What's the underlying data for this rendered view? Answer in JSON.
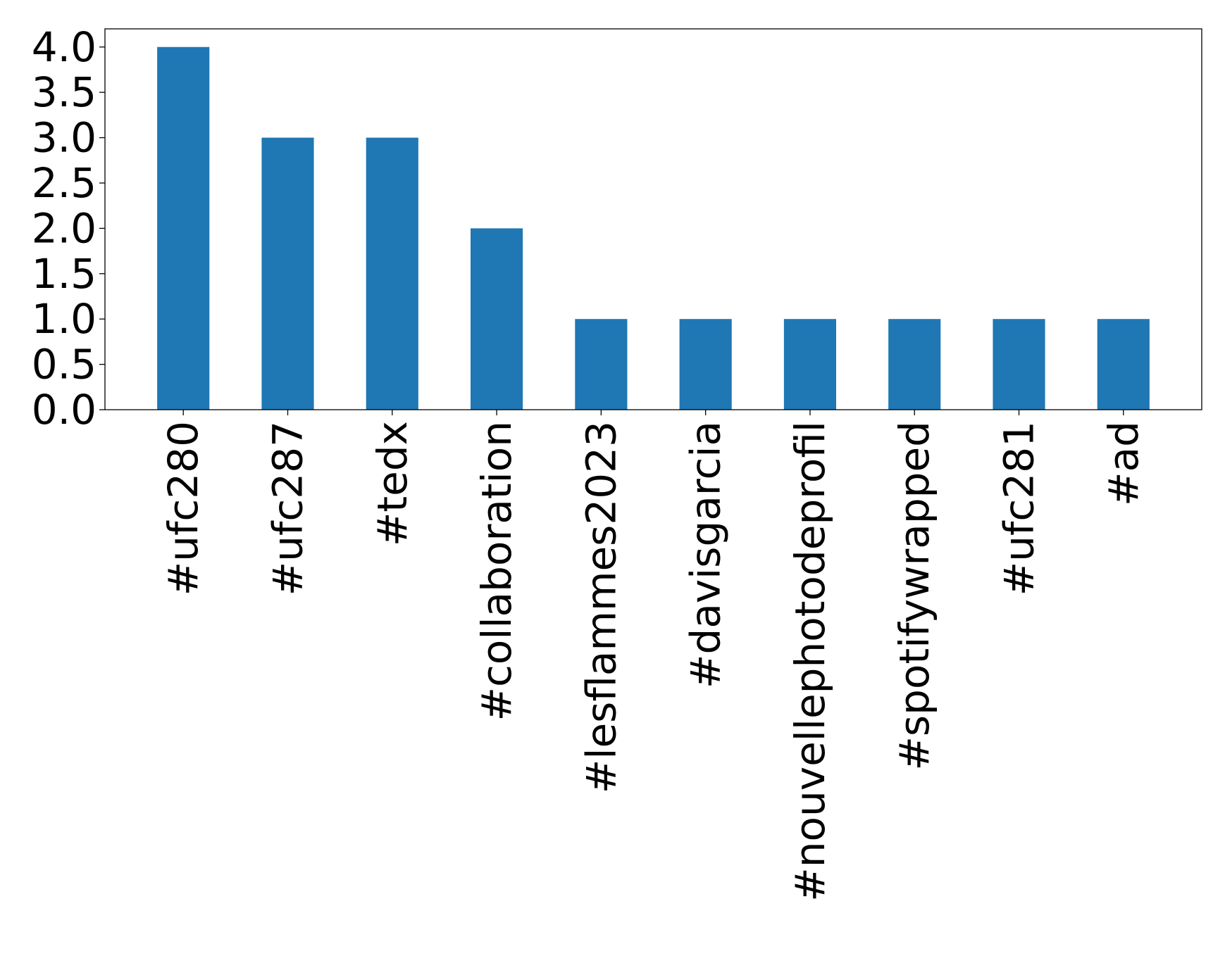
{
  "chart_data": {
    "type": "bar",
    "title": "",
    "xlabel": "",
    "ylabel": "",
    "categories": [
      "#ufc280",
      "#ufc287",
      "#tedx",
      "#collaboration",
      "#lesflammes2023",
      "#davisgarcia",
      "#nouvellephotodeprofil",
      "#spotifywrapped",
      "#ufc281",
      "#ad"
    ],
    "values": [
      4,
      3,
      3,
      2,
      1,
      1,
      1,
      1,
      1,
      1
    ],
    "ylim": [
      0,
      4.2
    ],
    "yticks": [
      "0.0",
      "0.5",
      "1.0",
      "1.5",
      "2.0",
      "2.5",
      "3.0",
      "3.5",
      "4.0"
    ],
    "bar_color": "#1f77b4",
    "grid": false,
    "legend": "none"
  }
}
